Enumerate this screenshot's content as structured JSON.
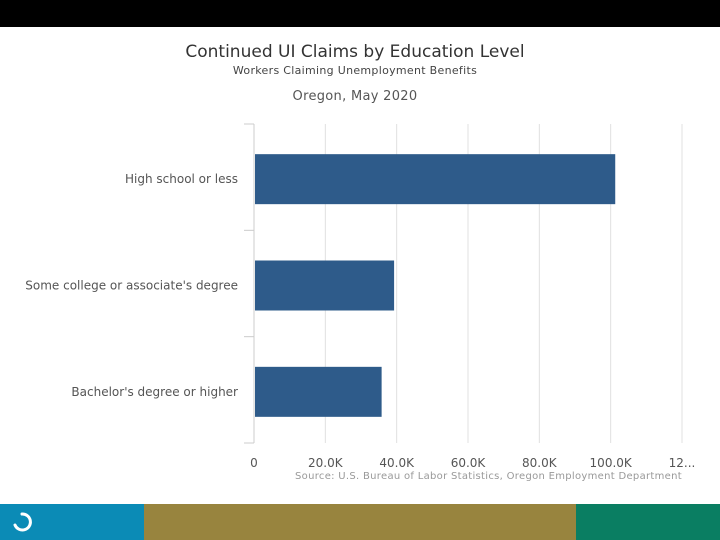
{
  "header": {
    "title": "Continued UI Claims by Education Level",
    "subtitle": "Workers Claiming Unemployment Benefits",
    "subtitle2": "Oregon, May 2020"
  },
  "footer": {
    "source": "Source: U.S. Bureau of Labor Statistics, Oregon Employment Department"
  },
  "colors": {
    "bar": "#2e5b8a",
    "grid": "#e0e0e0",
    "brand_blue": "#0b8bb6",
    "brand_olive": "#98843e",
    "brand_green": "#0a7e62"
  },
  "chart_data": {
    "type": "bar",
    "orientation": "horizontal",
    "title": "Continued UI Claims by Education Level",
    "subtitle": "Workers Claiming Unemployment Benefits",
    "categories": [
      "High school or less",
      "Some college or associate's degree",
      "Bachelor's degree or higher"
    ],
    "values": [
      101000,
      39000,
      35500
    ],
    "xlim": [
      0,
      120000
    ],
    "x_tick_labels": [
      "0",
      "20.0K",
      "40.0K",
      "60.0K",
      "80.0K",
      "100.0K",
      "12..."
    ],
    "grid": true,
    "legend": false
  }
}
